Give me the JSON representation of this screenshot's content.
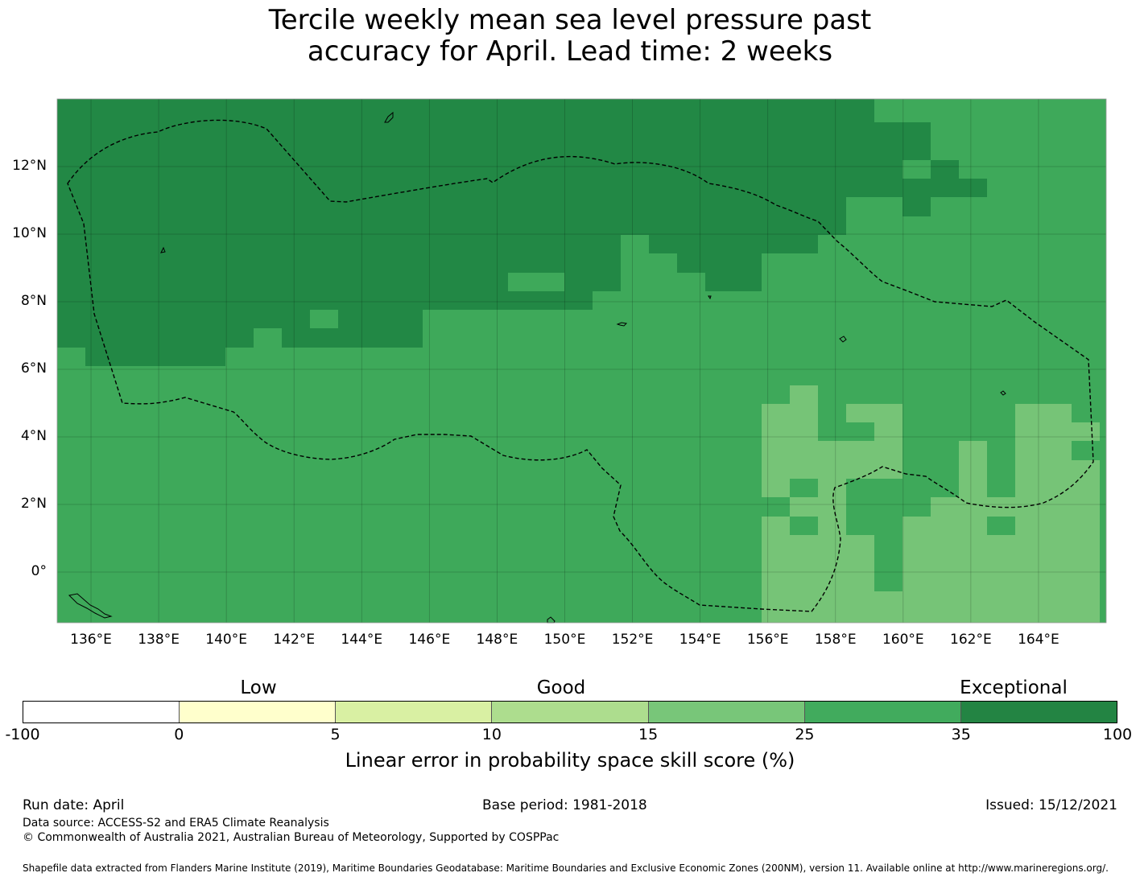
{
  "title_line1": "Tercile weekly mean sea level pressure past",
  "title_line2": "accuracy for April. Lead time: 2 weeks",
  "map": {
    "lon_range": [
      135,
      166
    ],
    "lat_range": [
      -1.5,
      14
    ],
    "lon_ticks": [
      "136°E",
      "138°E",
      "140°E",
      "142°E",
      "144°E",
      "146°E",
      "148°E",
      "150°E",
      "152°E",
      "154°E",
      "156°E",
      "158°E",
      "160°E",
      "162°E",
      "164°E"
    ],
    "lat_ticks": [
      "12°N",
      "10°N",
      "8°N",
      "6°N",
      "4°N",
      "2°N",
      "0°"
    ],
    "region_colors": {
      "exceptional": "#228845",
      "good_high": "#3ea95a",
      "good_low": "#76c477"
    }
  },
  "colorbar": {
    "category_labels": [
      "Low",
      "Good",
      "Exceptional"
    ],
    "tick_labels": [
      "-100",
      "0",
      "5",
      "10",
      "15",
      "25",
      "35",
      "100"
    ],
    "colors": [
      "#ffffff",
      "#ffffcc",
      "#d9f0a3",
      "#addd8e",
      "#78c679",
      "#41ab5d",
      "#238443"
    ],
    "label": "Linear error in probability space skill score (%)"
  },
  "footer": {
    "run_date": "Run date: April",
    "base_period": "Base period: 1981-2018",
    "issued": "Issued: 15/12/2021",
    "data_source": "Data source: ACCESS-S2 and ERA5 Climate Reanalysis",
    "copyright": "© Commonwealth of Australia 2021, Australian Bureau of Meteorology, Supported by COSPPac",
    "shapefile": "Shapefile data extracted from Flanders Marine Institute (2019), Maritime Boundaries Geodatabase: Maritime Boundaries and Exclusive Economic Zones (200NM), version 11. Available online at http://www.marineregions.org/."
  }
}
